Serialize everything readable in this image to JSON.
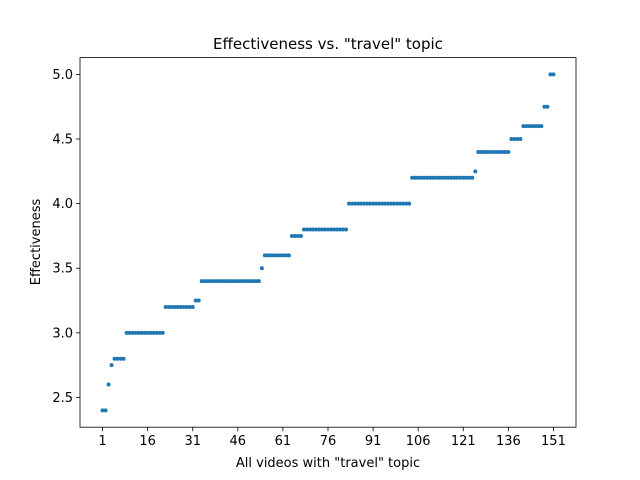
{
  "chart_data": {
    "type": "scatter",
    "title": "Effectiveness vs. \"travel\" topic",
    "xlabel": "All videos with \"travel\" topic",
    "ylabel": "Effectiveness",
    "color": "#1f77b4",
    "x": [
      1,
      2,
      3,
      4,
      5,
      6,
      7,
      8,
      9,
      10,
      11,
      12,
      13,
      14,
      15,
      16,
      17,
      18,
      19,
      20,
      21,
      22,
      23,
      24,
      25,
      26,
      27,
      28,
      29,
      30,
      31,
      32,
      33,
      34,
      35,
      36,
      37,
      38,
      39,
      40,
      41,
      42,
      43,
      44,
      45,
      46,
      47,
      48,
      49,
      50,
      51,
      52,
      53,
      54,
      55,
      56,
      57,
      58,
      59,
      60,
      61,
      62,
      63,
      64,
      65,
      66,
      67,
      68,
      69,
      70,
      71,
      72,
      73,
      74,
      75,
      76,
      77,
      78,
      79,
      80,
      81,
      82,
      83,
      84,
      85,
      86,
      87,
      88,
      89,
      90,
      91,
      92,
      93,
      94,
      95,
      96,
      97,
      98,
      99,
      100,
      101,
      102,
      103,
      104,
      105,
      106,
      107,
      108,
      109,
      110,
      111,
      112,
      113,
      114,
      115,
      116,
      117,
      118,
      119,
      120,
      121,
      122,
      123,
      124,
      125,
      126,
      127,
      128,
      129,
      130,
      131,
      132,
      133,
      134,
      135,
      136,
      137,
      138,
      139,
      140,
      141,
      142,
      143,
      144,
      145,
      146,
      147,
      148,
      149,
      150,
      151
    ],
    "values": [
      2.4,
      2.4,
      2.6,
      2.75,
      2.8,
      2.8,
      2.8,
      2.8,
      3,
      3,
      3,
      3,
      3,
      3,
      3,
      3,
      3,
      3,
      3,
      3,
      3,
      3.2,
      3.2,
      3.2,
      3.2,
      3.2,
      3.2,
      3.2,
      3.2,
      3.2,
      3.2,
      3.25,
      3.25,
      3.4,
      3.4,
      3.4,
      3.4,
      3.4,
      3.4,
      3.4,
      3.4,
      3.4,
      3.4,
      3.4,
      3.4,
      3.4,
      3.4,
      3.4,
      3.4,
      3.4,
      3.4,
      3.4,
      3.4,
      3.5,
      3.6,
      3.6,
      3.6,
      3.6,
      3.6,
      3.6,
      3.6,
      3.6,
      3.6,
      3.75,
      3.75,
      3.75,
      3.75,
      3.8,
      3.8,
      3.8,
      3.8,
      3.8,
      3.8,
      3.8,
      3.8,
      3.8,
      3.8,
      3.8,
      3.8,
      3.8,
      3.8,
      3.8,
      4,
      4,
      4,
      4,
      4,
      4,
      4,
      4,
      4,
      4,
      4,
      4,
      4,
      4,
      4,
      4,
      4,
      4,
      4,
      4,
      4,
      4.2,
      4.2,
      4.2,
      4.2,
      4.2,
      4.2,
      4.2,
      4.2,
      4.2,
      4.2,
      4.2,
      4.2,
      4.2,
      4.2,
      4.2,
      4.2,
      4.2,
      4.2,
      4.2,
      4.2,
      4.2,
      4.25,
      4.4,
      4.4,
      4.4,
      4.4,
      4.4,
      4.4,
      4.4,
      4.4,
      4.4,
      4.4,
      4.4,
      4.5,
      4.5,
      4.5,
      4.5,
      4.6,
      4.6,
      4.6,
      4.6,
      4.6,
      4.6,
      4.6,
      4.75,
      4.75,
      5,
      5
    ],
    "xlim": [
      -6.5,
      158.5
    ],
    "xticks": [
      1,
      16,
      31,
      46,
      61,
      76,
      91,
      106,
      121,
      136,
      151
    ],
    "ylim": [
      2.27,
      5.13
    ],
    "yticks": [
      2.5,
      {
        "value": 3,
        "label": "3.0"
      },
      3.5,
      {
        "value": 4,
        "label": "4.0"
      },
      4.5,
      {
        "value": 5,
        "label": "5.0"
      }
    ]
  }
}
